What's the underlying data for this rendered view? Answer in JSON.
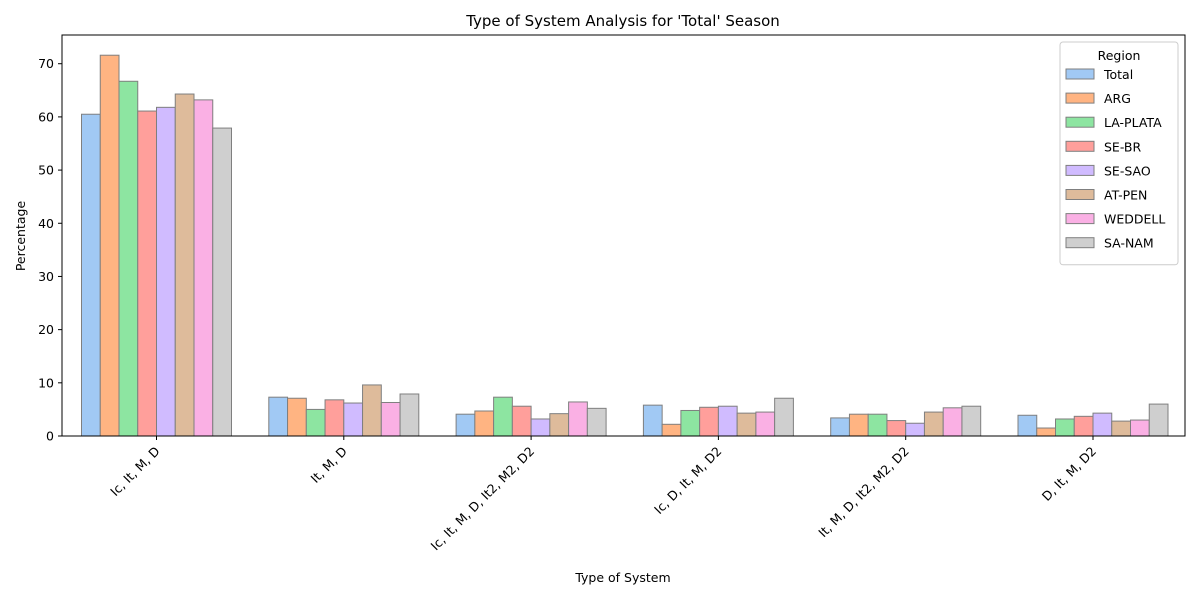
{
  "chart_data": {
    "type": "bar",
    "title": "Type of System Analysis for 'Total' Season",
    "xlabel": "Type of System",
    "ylabel": "Percentage",
    "ylim": [
      0,
      75.4
    ],
    "yticks": [
      0,
      10,
      20,
      30,
      40,
      50,
      60,
      70
    ],
    "grid": false,
    "categories": [
      "Ic, It, M, D",
      "It, M, D",
      "Ic, It, M, D, It2, M2, D2",
      "Ic, D, It, M, D2",
      "It, M, D, It2, M2, D2",
      "D, It, M, D2"
    ],
    "legend": {
      "title": "Region",
      "position": "top-right"
    },
    "series": [
      {
        "name": "Total",
        "color": "#a1c9f4",
        "values": [
          60.5,
          7.3,
          4.1,
          5.8,
          3.4,
          3.9
        ]
      },
      {
        "name": "ARG",
        "color": "#ffb482",
        "values": [
          71.6,
          7.1,
          4.7,
          2.2,
          4.1,
          1.5
        ]
      },
      {
        "name": "LA-PLATA",
        "color": "#8de5a1",
        "values": [
          66.7,
          5.0,
          7.3,
          4.8,
          4.1,
          3.2
        ]
      },
      {
        "name": "SE-BR",
        "color": "#ff9f9b",
        "values": [
          61.1,
          6.8,
          5.6,
          5.4,
          2.9,
          3.7
        ]
      },
      {
        "name": "SE-SAO",
        "color": "#d0bbff",
        "values": [
          61.8,
          6.2,
          3.2,
          5.6,
          2.4,
          4.3
        ]
      },
      {
        "name": "AT-PEN",
        "color": "#debb9b",
        "values": [
          64.3,
          9.6,
          4.2,
          4.3,
          4.5,
          2.8
        ]
      },
      {
        "name": "WEDDELL",
        "color": "#fab0e4",
        "values": [
          63.2,
          6.3,
          6.4,
          4.5,
          5.3,
          3.0
        ]
      },
      {
        "name": "SA-NAM",
        "color": "#cfcfcf",
        "values": [
          57.9,
          7.9,
          5.2,
          7.1,
          5.6,
          6.0
        ]
      }
    ]
  }
}
